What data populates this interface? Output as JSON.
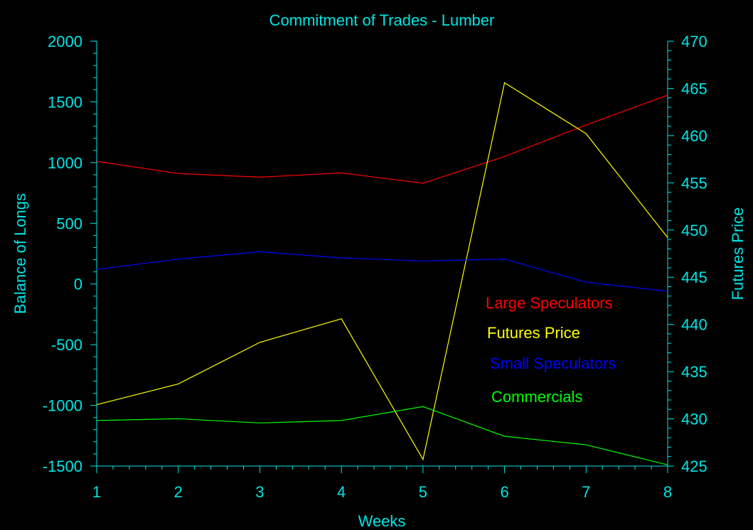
{
  "chart_data": {
    "type": "line",
    "title": "Commitment of Trades - Lumber",
    "xlabel": "Weeks",
    "ylabel": "Balance of Longs",
    "y2label": "Futures Price",
    "x": [
      1,
      2,
      3,
      4,
      5,
      6,
      7,
      8
    ],
    "ylim": [
      -1500,
      2000
    ],
    "y2lim": [
      425,
      470
    ],
    "yticks": [
      -1500,
      -1000,
      -500,
      0,
      500,
      1000,
      1500,
      2000
    ],
    "y2ticks": [
      425,
      430,
      435,
      440,
      445,
      450,
      455,
      460,
      465,
      470
    ],
    "grid": false,
    "legend_position": "center-right",
    "series": [
      {
        "name": "Large Speculators",
        "axis": "left",
        "color": "#ff0000",
        "values": [
          1010,
          910,
          880,
          915,
          830,
          1050,
          1310,
          1555
        ]
      },
      {
        "name": "Futures Price",
        "axis": "right",
        "color": "#ffff00",
        "values": [
          431.5,
          433.7,
          438.1,
          440.6,
          425.7,
          465.6,
          460.2,
          449.2
        ]
      },
      {
        "name": "Small Speculators",
        "axis": "left",
        "color": "#0000ff",
        "values": [
          120,
          205,
          265,
          215,
          190,
          205,
          15,
          -60
        ]
      },
      {
        "name": "Commercials",
        "axis": "left",
        "color": "#00ff00",
        "values": [
          -1125,
          -1110,
          -1145,
          -1125,
          -1010,
          -1255,
          -1325,
          -1490
        ]
      }
    ]
  },
  "colors": {
    "background": "#000000",
    "axis": "#00e5e5",
    "text": "#00e5e5"
  }
}
